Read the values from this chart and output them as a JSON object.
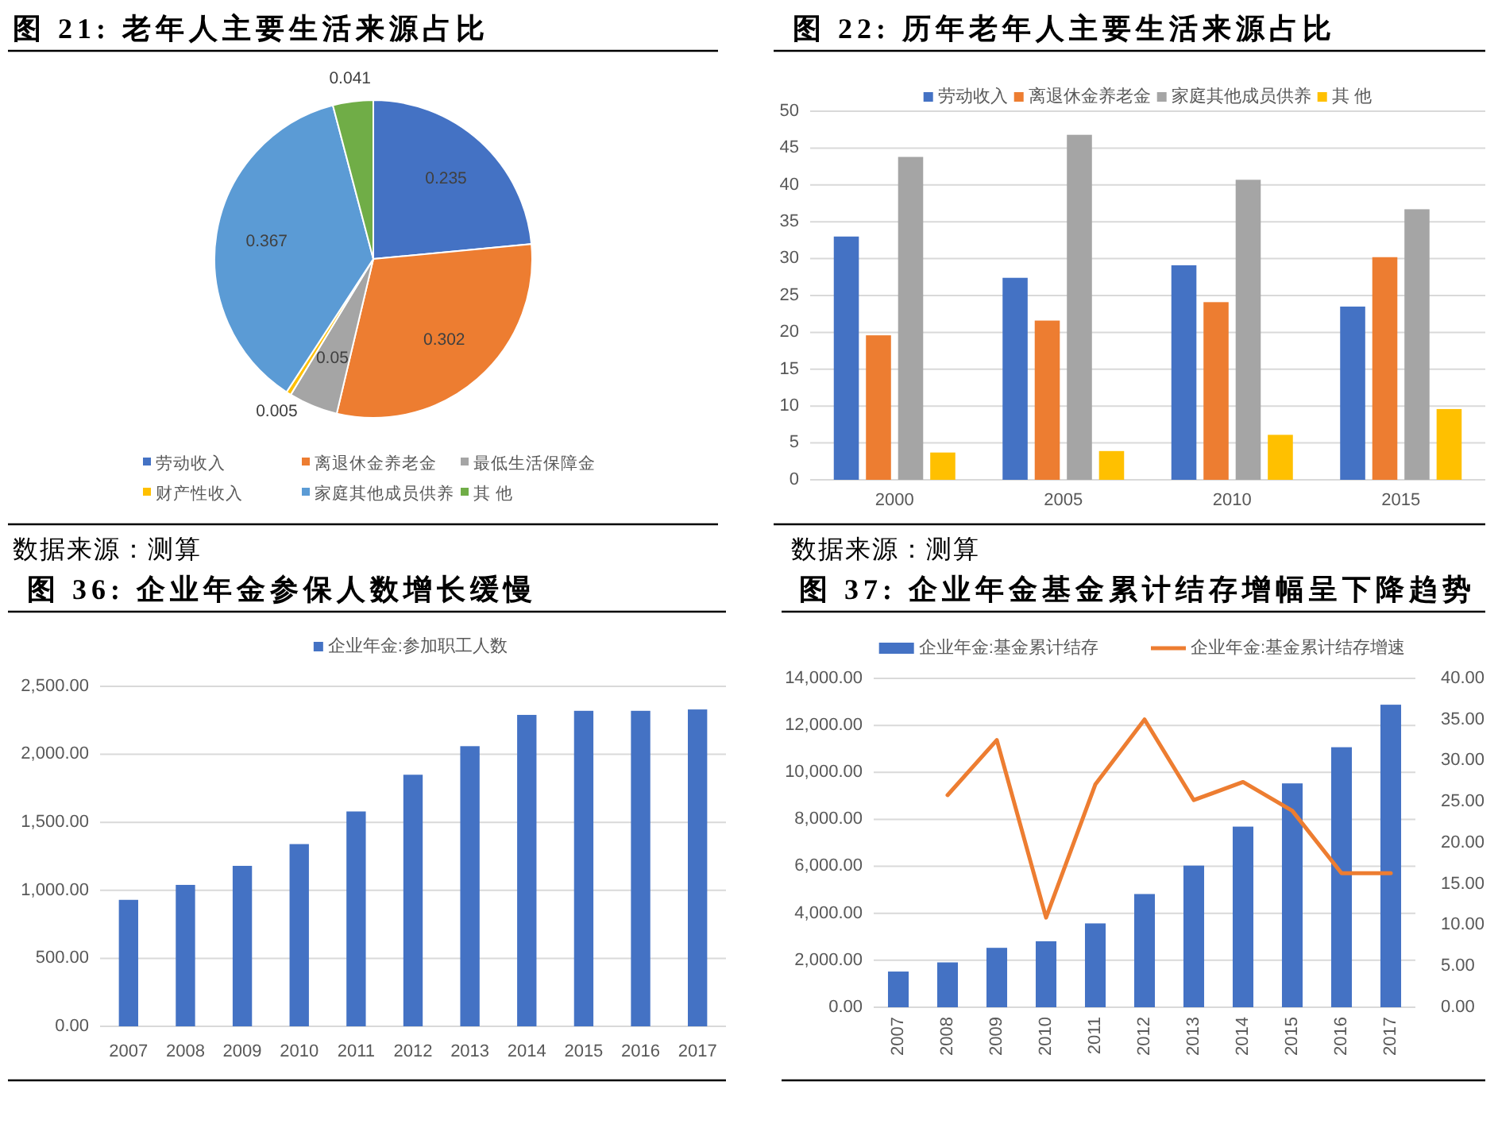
{
  "chart_data": [
    {
      "type": "pie",
      "title": "图 21: 老年人主要生活来源占比",
      "categories": [
        "劳动收入",
        "离退休金养老金",
        "最低生活保障金",
        "财产性收入",
        "家庭其他成员供养",
        "其 他"
      ],
      "values": [
        0.235,
        0.302,
        0.05,
        0.005,
        0.367,
        0.041
      ],
      "colors": [
        "#4472c4",
        "#ed7d31",
        "#a5a5a5",
        "#ffc000",
        "#5b9bd5",
        "#70ad47"
      ],
      "data_labels": true,
      "legend": "bottom",
      "annotations": [
        "数据来源：测算"
      ]
    },
    {
      "type": "bar",
      "title": "图 22: 历年老年人主要生活来源占比",
      "categories": [
        "2000",
        "2005",
        "2010",
        "2015"
      ],
      "series": [
        {
          "name": "劳动收入",
          "color": "#4472c4",
          "values": [
            33.0,
            27.4,
            29.1,
            23.5
          ]
        },
        {
          "name": "离退休金养老金",
          "color": "#ed7d31",
          "values": [
            19.6,
            21.6,
            24.1,
            30.2
          ]
        },
        {
          "name": "家庭其他成员供养",
          "color": "#a5a5a5",
          "values": [
            43.8,
            46.8,
            40.7,
            36.7
          ]
        },
        {
          "name": "其 他",
          "color": "#ffc000",
          "values": [
            3.7,
            3.9,
            6.1,
            9.6
          ]
        }
      ],
      "ylim": [
        0,
        50
      ],
      "yticks": [
        0,
        5,
        10,
        15,
        20,
        25,
        30,
        35,
        40,
        45,
        50
      ],
      "grid": "y",
      "legend": "top",
      "annotations": [
        "数据来源：测算"
      ]
    },
    {
      "type": "bar",
      "title": "图 36: 企业年金参保人数增长缓慢",
      "categories": [
        "2007",
        "2008",
        "2009",
        "2010",
        "2011",
        "2012",
        "2013",
        "2014",
        "2015",
        "2016",
        "2017"
      ],
      "series": [
        {
          "name": "企业年金:参加职工人数",
          "color": "#4472c4",
          "values": [
            930,
            1040,
            1180,
            1340,
            1580,
            1850,
            2060,
            2290,
            2320,
            2320,
            2330
          ]
        }
      ],
      "ylim": [
        0,
        2500
      ],
      "yticks": [
        {
          "value": 0,
          "label": "0.00"
        },
        {
          "value": 500,
          "label": "500.00"
        },
        {
          "value": 1000,
          "label": "1,000.00"
        },
        {
          "value": 1500,
          "label": "1,500.00"
        },
        {
          "value": 2000,
          "label": "2,000.00"
        },
        {
          "value": 2500,
          "label": "2,500.00"
        }
      ],
      "grid": "y",
      "legend": "top"
    },
    {
      "type": "bar",
      "title": "图 37: 企业年金基金累计结存增幅呈下降趋势",
      "categories": [
        "2007",
        "2008",
        "2009",
        "2010",
        "2011",
        "2012",
        "2013",
        "2014",
        "2015",
        "2016",
        "2017"
      ],
      "series": [
        {
          "name": "企业年金:基金累计结存",
          "color": "#4472c4",
          "values": [
            1520,
            1910,
            2530,
            2810,
            3570,
            4820,
            6030,
            7690,
            9530,
            11070,
            12880
          ]
        },
        {
          "name": "企业年金:基金累计结存增速",
          "type": "line",
          "axis": "y2",
          "color": "#ed7d31",
          "values": [
            null,
            25.8,
            32.5,
            10.9,
            27.1,
            35.0,
            25.2,
            27.4,
            23.9,
            16.3,
            16.3
          ]
        }
      ],
      "ylim": [
        0,
        14000
      ],
      "yticks": [
        {
          "value": 0,
          "label": "0.00"
        },
        {
          "value": 2000,
          "label": "2,000.00"
        },
        {
          "value": 4000,
          "label": "4,000.00"
        },
        {
          "value": 6000,
          "label": "6,000.00"
        },
        {
          "value": 8000,
          "label": "8,000.00"
        },
        {
          "value": 10000,
          "label": "10,000.00"
        },
        {
          "value": 12000,
          "label": "12,000.00"
        },
        {
          "value": 14000,
          "label": "14,000.00"
        }
      ],
      "y2lim": [
        0,
        40
      ],
      "y2ticks": [
        {
          "value": 0,
          "label": "0.00"
        },
        {
          "value": 5,
          "label": "5.00"
        },
        {
          "value": 10,
          "label": "10.00"
        },
        {
          "value": 15,
          "label": "15.00"
        },
        {
          "value": 20,
          "label": "20.00"
        },
        {
          "value": 25,
          "label": "25.00"
        },
        {
          "value": 30,
          "label": "30.00"
        },
        {
          "value": 35,
          "label": "35.00"
        },
        {
          "value": 40,
          "label": "40.00"
        }
      ],
      "grid": "y",
      "legend": "top"
    }
  ]
}
